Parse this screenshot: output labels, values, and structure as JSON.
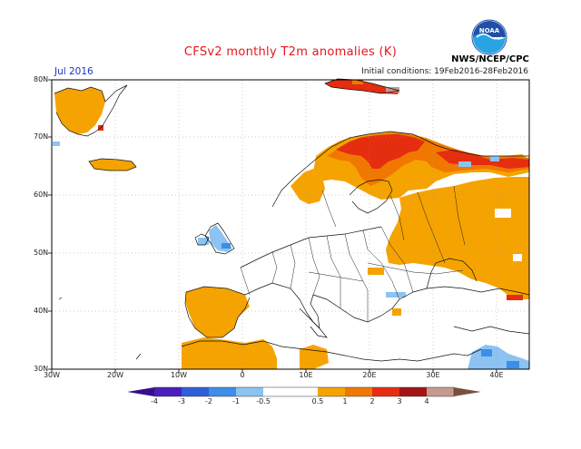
{
  "title": "CFSv2 monthly T2m anomalies (K)",
  "forecast_month": "Jul 2016",
  "initial_conditions": "Initial conditions: 19Feb2016-28Feb2016",
  "agency": "NWS/NCEP/CPC",
  "logo_text": "NOAA",
  "map": {
    "lat_labels": [
      "80N",
      "70N",
      "60N",
      "50N",
      "40N",
      "30N"
    ],
    "lon_labels": [
      "30W",
      "20W",
      "10W",
      "0",
      "10E",
      "20E",
      "30E",
      "40E"
    ]
  },
  "colorbar": {
    "labels": [
      "-4",
      "-3",
      "-2",
      "-1",
      "-0.5",
      "0.5",
      "1",
      "2",
      "3",
      "4"
    ],
    "colors": [
      "#4b1fbf",
      "#2f5fd8",
      "#3d8ee6",
      "#8cc3f2",
      "#ffffff",
      "#f5a300",
      "#f07800",
      "#e52d0f",
      "#a31515",
      "#c49a8f"
    ],
    "left_end_color": "#3a0d8f",
    "right_end_color": "#7a5040"
  },
  "colors": {
    "warm_light": "#f5a300",
    "warm_medium": "#f07800",
    "warm_strong": "#e52d0f",
    "warm_extreme": "#a31515",
    "cool_light": "#8cc3f2",
    "cool_medium": "#3d8ee6"
  }
}
